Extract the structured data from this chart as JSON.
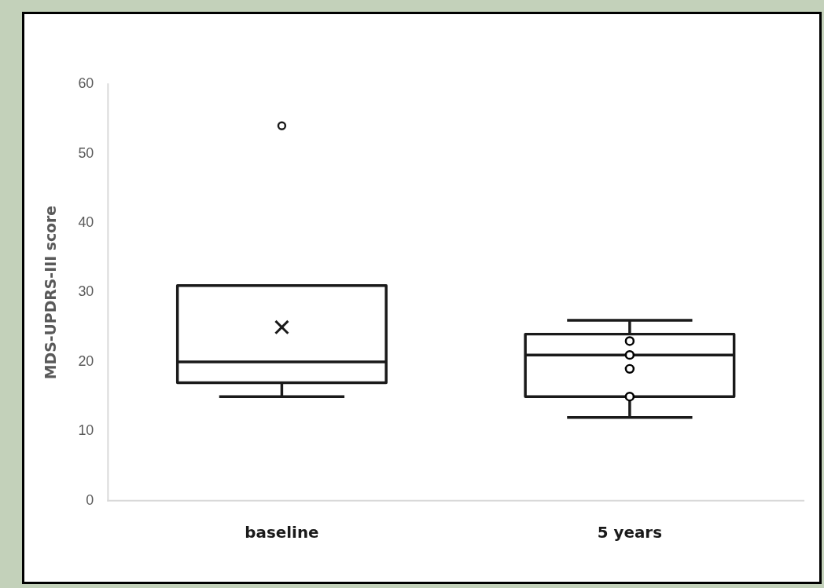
{
  "chart_data": {
    "type": "box",
    "ylabel": "MDS-UPDRS-III score",
    "categories": [
      "baseline",
      "5 years"
    ],
    "boxes": [
      {
        "low": 15,
        "q1": 17,
        "median": 20,
        "q3": 31,
        "high": 31,
        "mean": 25,
        "outliers": [
          54
        ]
      },
      {
        "low": 12,
        "q1": 15,
        "median": 21,
        "q3": 24,
        "high": 26
      }
    ],
    "series": [
      {
        "type": "scatter",
        "color": "#000000",
        "x": [
          "5 years",
          "5 years",
          "5 years",
          "5 years"
        ],
        "values": [
          23,
          21,
          19,
          15
        ]
      }
    ],
    "ylim": [
      0,
      60
    ],
    "yticks": [
      0,
      10,
      20,
      30,
      40,
      50,
      60
    ],
    "grid": false,
    "legend": false,
    "marker": "circle"
  }
}
